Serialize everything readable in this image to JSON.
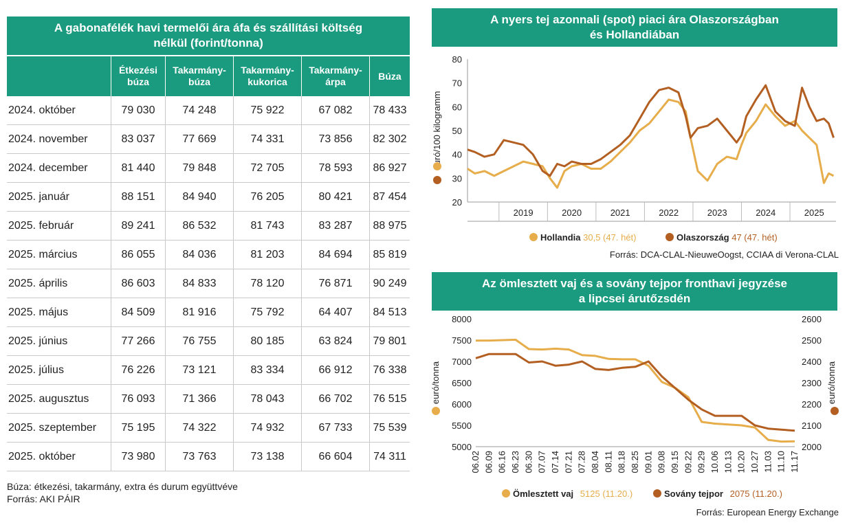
{
  "colors": {
    "accent": "#1a9a7e",
    "light": "#e6ad4a",
    "dark": "#b35f22"
  },
  "table": {
    "title": "A gabonafélék havi termelői ára áfa és szállítási költség nélkül (forint/tonna)",
    "columns": [
      "",
      "Étkezési búza",
      "Takarmány-búza",
      "Takarmány-kukorica",
      "Takarmány-árpa",
      "Búza"
    ],
    "rows": [
      [
        "2024. október",
        "79 030",
        "74 248",
        "75 922",
        "67 082",
        "78 433"
      ],
      [
        "2024. november",
        "83 037",
        "77 669",
        "74 331",
        "73 856",
        "82 302"
      ],
      [
        "2024. december",
        "81 440",
        "79 848",
        "72 705",
        "78 593",
        "86 927"
      ],
      [
        "2025. január",
        "88 151",
        "84 940",
        "76 205",
        "80 421",
        "87 454"
      ],
      [
        "2025. február",
        "89 241",
        "86 532",
        "81 743",
        "83 287",
        "88 975"
      ],
      [
        "2025. március",
        "86 055",
        "84 036",
        "81 203",
        "84 694",
        "85 819"
      ],
      [
        "2025. április",
        "86 603",
        "84 833",
        "78 120",
        "76 871",
        "90 249"
      ],
      [
        "2025. május",
        "84 509",
        "81 916",
        "75 792",
        "64 407",
        "84 513"
      ],
      [
        "2025. június",
        "77 266",
        "76 755",
        "80 185",
        "63 824",
        "79 801"
      ],
      [
        "2025. július",
        "76 226",
        "73 121",
        "83 334",
        "66 912",
        "76 338"
      ],
      [
        "2025. augusztus",
        "76 093",
        "71 366",
        "78 043",
        "66 702",
        "76 515"
      ],
      [
        "2025. szeptember",
        "75 195",
        "74 322",
        "74 932",
        "67 733",
        "75 539"
      ],
      [
        "2025. október",
        "73 980",
        "73 763",
        "73 138",
        "66 604",
        "74 311"
      ]
    ],
    "note": "Búza: étkezési, takarmány, extra és durum együttvéve",
    "source": "Forrás: AKI PÁIR"
  },
  "chart_data": [
    {
      "type": "line",
      "title": "A nyers tej azonnali (spot) piaci ára Olaszországban és Hollandiában",
      "ylabel": "euró/100 kilogramm",
      "ylim": [
        20,
        80
      ],
      "yticks": [
        20,
        30,
        40,
        50,
        60,
        70,
        80
      ],
      "xlim": [
        2018.35,
        2025.95
      ],
      "xticks": [
        "2019",
        "2020",
        "2021",
        "2022",
        "2023",
        "2024",
        "2025"
      ],
      "series": [
        {
          "name": "Hollandia",
          "legend_value": "30,5 (47. hét)",
          "color": "#e6ad4a",
          "x": [
            2018.35,
            2018.5,
            2018.7,
            2018.9,
            2019.1,
            2019.3,
            2019.5,
            2019.7,
            2019.9,
            2020.05,
            2020.2,
            2020.35,
            2020.5,
            2020.7,
            2020.9,
            2021.1,
            2021.3,
            2021.5,
            2021.7,
            2021.9,
            2022.1,
            2022.3,
            2022.5,
            2022.7,
            2022.85,
            2022.95,
            2023.1,
            2023.3,
            2023.5,
            2023.7,
            2023.9,
            2024.0,
            2024.1,
            2024.3,
            2024.5,
            2024.7,
            2024.9,
            2025.1,
            2025.25,
            2025.4,
            2025.55,
            2025.7,
            2025.8,
            2025.9
          ],
          "y": [
            34,
            32,
            33,
            31,
            33,
            35,
            37,
            36,
            35,
            30,
            26,
            33,
            35,
            36,
            34,
            34,
            37,
            41,
            45,
            50,
            53,
            58,
            63,
            62,
            58,
            47,
            33,
            29,
            36,
            39,
            38,
            44,
            49,
            54,
            61,
            56,
            52,
            54,
            50,
            47,
            44,
            28,
            32,
            31
          ]
        },
        {
          "name": "Olaszország",
          "legend_value": "47 (47. hét)",
          "color": "#b35f22",
          "x": [
            2018.35,
            2018.5,
            2018.7,
            2018.9,
            2019.1,
            2019.3,
            2019.5,
            2019.7,
            2019.9,
            2020.05,
            2020.2,
            2020.35,
            2020.5,
            2020.7,
            2020.9,
            2021.1,
            2021.3,
            2021.5,
            2021.7,
            2021.9,
            2022.1,
            2022.3,
            2022.5,
            2022.7,
            2022.85,
            2022.95,
            2023.1,
            2023.3,
            2023.5,
            2023.7,
            2023.9,
            2024.0,
            2024.1,
            2024.3,
            2024.5,
            2024.7,
            2024.9,
            2025.1,
            2025.25,
            2025.4,
            2025.55,
            2025.7,
            2025.8,
            2025.9
          ],
          "y": [
            42,
            41,
            39,
            40,
            46,
            45,
            44,
            40,
            33,
            31,
            36,
            35,
            37,
            36,
            36,
            38,
            41,
            44,
            48,
            55,
            62,
            67,
            68,
            66,
            56,
            47,
            51,
            52,
            55,
            50,
            45,
            48,
            56,
            63,
            69,
            58,
            54,
            52,
            68,
            60,
            54,
            55,
            53,
            47
          ]
        }
      ],
      "source": "Forrás: DCA-CLAL-NieuweOogst, CCIAA di Verona-CLAL"
    },
    {
      "type": "line",
      "title": "Az ömlesztett vaj és a sovány tejpor fronthavi jegyzése a lipcsei árutőzsdén",
      "ylabel_left": "euró/tonna",
      "ylabel_right": "euró/tonna",
      "ylim_left": [
        5000,
        8000
      ],
      "ylim_right": [
        2000,
        2600
      ],
      "yticks_left": [
        5000,
        5500,
        6000,
        6500,
        7000,
        7500,
        8000
      ],
      "yticks_right": [
        2000,
        2100,
        2200,
        2300,
        2400,
        2500,
        2600
      ],
      "categories": [
        "06.02",
        "06.09",
        "06.16",
        "06.23",
        "06.30",
        "07.07",
        "07.14",
        "07.21",
        "07.28",
        "08.04",
        "08.11",
        "08.18",
        "08.25",
        "09.01",
        "09.08",
        "09.15",
        "09.22",
        "09.29",
        "10.06",
        "10.13",
        "10.20",
        "10.27",
        "11.03",
        "11.10",
        "11.17"
      ],
      "series": [
        {
          "name": "Ömlesztett vaj",
          "axis": "left",
          "legend_value": "5125 (11.20.)",
          "color": "#e6ad4a",
          "values": [
            7490,
            7490,
            7500,
            7510,
            7290,
            7280,
            7300,
            7280,
            7150,
            7130,
            7060,
            7050,
            7050,
            6900,
            6520,
            6380,
            6160,
            5580,
            5540,
            5520,
            5500,
            5450,
            5160,
            5120,
            5125
          ]
        },
        {
          "name": "Sovány tejpor",
          "axis": "right",
          "legend_value": "2075 (11.20.)",
          "color": "#b35f22",
          "values": [
            2415,
            2435,
            2435,
            2435,
            2395,
            2400,
            2380,
            2385,
            2400,
            2365,
            2360,
            2370,
            2375,
            2400,
            2330,
            2275,
            2220,
            2175,
            2145,
            2145,
            2145,
            2100,
            2085,
            2080,
            2075
          ]
        }
      ],
      "source": "Forrás: European Energy Exchange"
    }
  ]
}
